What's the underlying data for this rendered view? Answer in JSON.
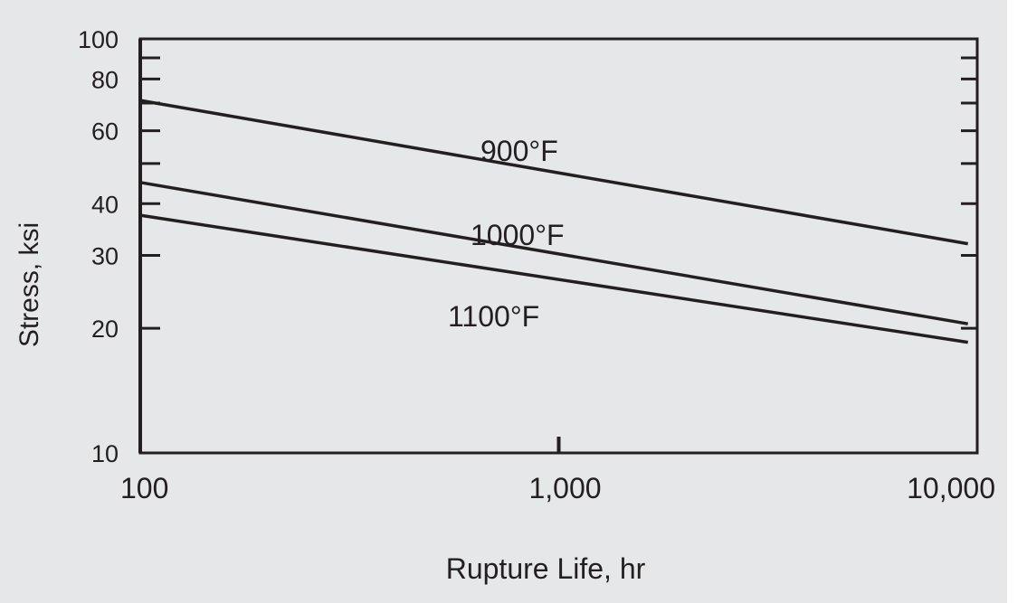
{
  "chart_data": {
    "type": "line",
    "title": "",
    "xlabel": "Rupture Life, hr",
    "ylabel": "Stress, ksi",
    "x_scale": "log",
    "y_scale": "log",
    "xlim": [
      100,
      10000
    ],
    "ylim": [
      10,
      100
    ],
    "x_ticks": [
      {
        "value": 100,
        "label": "100"
      },
      {
        "value": 1000,
        "label": "1,000"
      },
      {
        "value": 10000,
        "label": "10,000"
      }
    ],
    "y_ticks": [
      {
        "value": 10,
        "label": "10"
      },
      {
        "value": 20,
        "label": "20"
      },
      {
        "value": 30,
        "label": "30"
      },
      {
        "value": 40,
        "label": "40"
      },
      {
        "value": 60,
        "label": "60"
      },
      {
        "value": 80,
        "label": "80"
      },
      {
        "value": 100,
        "label": "100"
      }
    ],
    "grid": false,
    "legend": "none",
    "series": [
      {
        "name": "900°F",
        "x": [
          100,
          9500
        ],
        "y": [
          71,
          32
        ]
      },
      {
        "name": "1000°F",
        "x": [
          100,
          9500
        ],
        "y": [
          45,
          20.5
        ]
      },
      {
        "name": "1100°F",
        "x": [
          100,
          9500
        ],
        "y": [
          37.5,
          18.5
        ]
      }
    ],
    "colors": {
      "background": "#e6e7e8",
      "ink": "#231f20"
    }
  }
}
